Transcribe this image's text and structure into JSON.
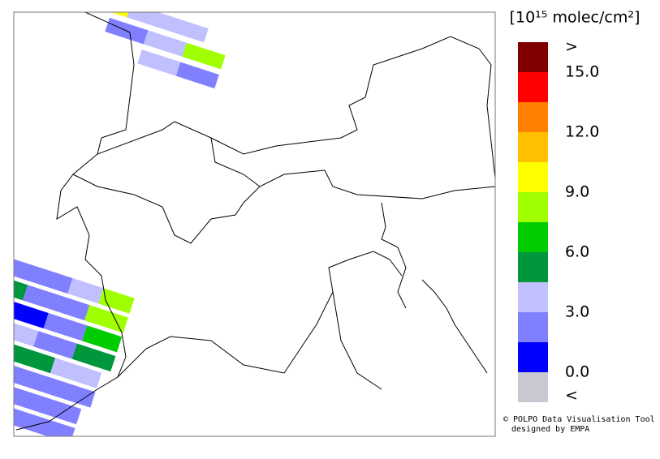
{
  "legend": {
    "title": "[10¹⁵ molec/cm²]",
    "colors": [
      "#800000",
      "#ff0000",
      "#ff8000",
      "#ffc000",
      "#ffff00",
      "#a0ff00",
      "#00cc00",
      "#00963c",
      "#c0c0ff",
      "#8080ff",
      "#0000ff",
      "#c8c8d2"
    ],
    "labels": [
      ">",
      "15.0",
      "12.0",
      "9.0",
      "6.0",
      "3.0",
      "0.0",
      "<"
    ]
  },
  "credit": [
    "© POLPO Data Visualisation Tool",
    "designed by EMPA"
  ]
}
